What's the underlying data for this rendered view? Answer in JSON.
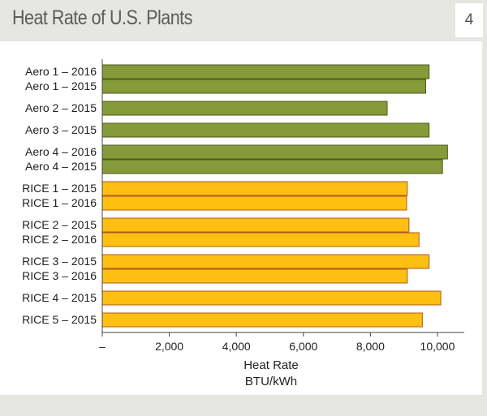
{
  "header": {
    "title": "Heat Rate of U.S. Plants",
    "figure_number": "4"
  },
  "colors": {
    "aero": "#879a3a",
    "rice": "#fcbf12",
    "aero_edge": "#4d5a18",
    "rice_edge": "#b4581a"
  },
  "chart_data": {
    "type": "bar",
    "orientation": "horizontal",
    "title": "Heat Rate of U.S. Plants",
    "xlabel": "Heat Rate",
    "xunit": "BTU/kWh",
    "xlim": [
      0,
      10800
    ],
    "x_ticks": [
      0,
      2000,
      4000,
      6000,
      8000,
      10000
    ],
    "x_tick_labels": [
      "–",
      "2,000",
      "4,000",
      "6,000",
      "8,000",
      "10,000"
    ],
    "grid": false,
    "legend": "none",
    "bars": [
      {
        "label": "Aero 1 – 2016",
        "value": 9750,
        "group": "aero"
      },
      {
        "label": "Aero 1 – 2015",
        "value": 9650,
        "group": "aero"
      },
      {
        "label": "Aero 2 – 2015",
        "value": 8500,
        "group": "aero"
      },
      {
        "label": "Aero 3 – 2015",
        "value": 9750,
        "group": "aero"
      },
      {
        "label": "Aero 4 – 2016",
        "value": 10300,
        "group": "aero"
      },
      {
        "label": "Aero 4 – 2015",
        "value": 10150,
        "group": "aero"
      },
      {
        "label": "RICE 1 – 2015",
        "value": 9100,
        "group": "rice"
      },
      {
        "label": "RICE 1 – 2016",
        "value": 9080,
        "group": "rice"
      },
      {
        "label": "RICE 2 – 2015",
        "value": 9150,
        "group": "rice"
      },
      {
        "label": "RICE 2 – 2016",
        "value": 9450,
        "group": "rice"
      },
      {
        "label": "RICE 3 – 2015",
        "value": 9750,
        "group": "rice"
      },
      {
        "label": "RICE 3 – 2016",
        "value": 9100,
        "group": "rice"
      },
      {
        "label": "RICE 4 – 2015",
        "value": 10100,
        "group": "rice"
      },
      {
        "label": "RICE 5 – 2015",
        "value": 9550,
        "group": "rice"
      }
    ]
  }
}
